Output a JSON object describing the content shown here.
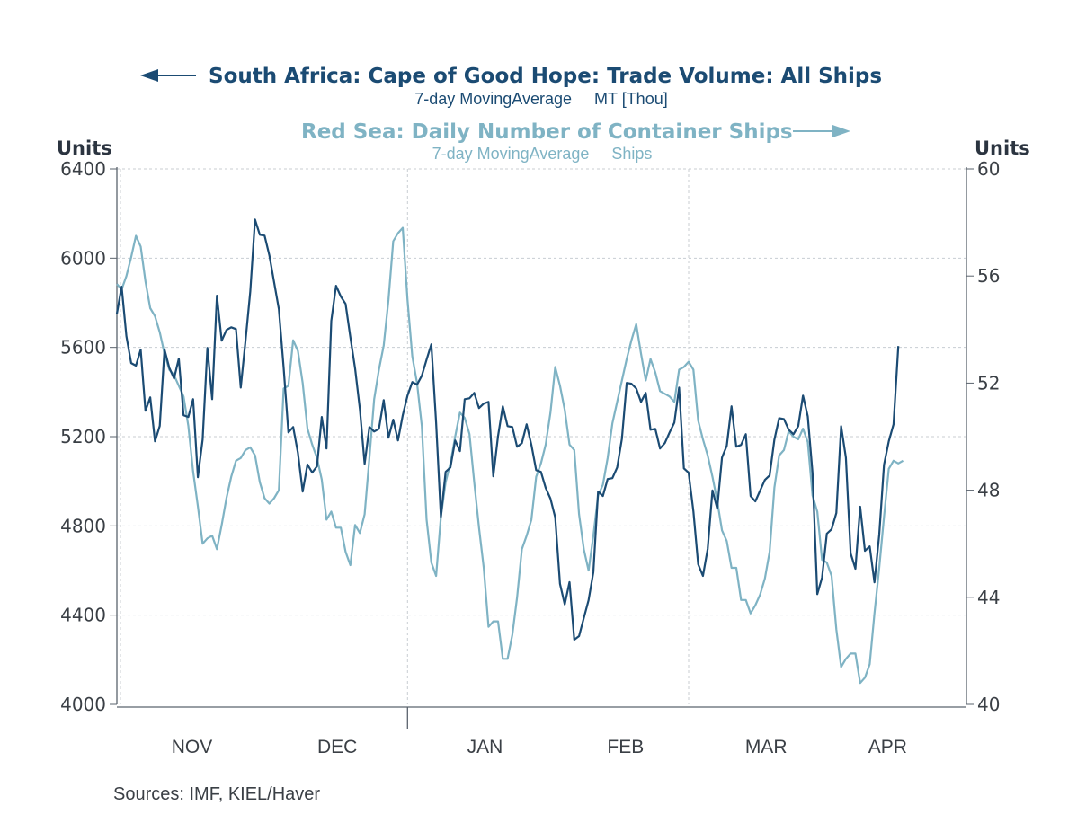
{
  "chart_data": {
    "type": "line",
    "title_left": "South Africa: Cape of Good Hope: Trade Volume: All Ships",
    "subtitle_left": "7-day MovingAverage     MT [Thou]",
    "title_right": "Red Sea: Daily Number of Container Ships",
    "subtitle_right": "7-day MovingAverage     Ships",
    "ylabel_left": "Units",
    "ylabel_right": "Units",
    "ylim_left": [
      4000,
      6400
    ],
    "ylim_right": [
      40,
      60
    ],
    "yticks_left": [
      "6400",
      "6000",
      "5600",
      "5200",
      "4800",
      "4400",
      "4000"
    ],
    "yticks_right": [
      "60",
      "56",
      "52",
      "48",
      "44",
      "40"
    ],
    "x_categories": [
      "NOV",
      "DEC",
      "JAN",
      "FEB",
      "MAR",
      "APR"
    ],
    "x_range_days": [
      0,
      182
    ],
    "month_start_days": [
      0,
      30,
      61,
      92,
      120,
      151
    ],
    "grid": true,
    "source": "Sources:  IMF, KIEL/Haver",
    "colors": {
      "left_series": "#1b4b73",
      "right_series": "#7fb3c4",
      "axis": "#5a636d",
      "grid": "#c8cdd2",
      "text": "#3a3f45"
    },
    "series": [
      {
        "name": "South Africa: Cape of Good Hope: Trade Volume: All Ships",
        "axis": "left",
        "start_day": 0,
        "values": [
          5751,
          5872,
          5650,
          5530,
          5518,
          5590,
          5316,
          5376,
          5179,
          5248,
          5590,
          5509,
          5461,
          5550,
          5296,
          5288,
          5368,
          5018,
          5187,
          5598,
          5368,
          5832,
          5630,
          5678,
          5690,
          5682,
          5420,
          5630,
          5851,
          6173,
          6105,
          6101,
          6013,
          5892,
          5771,
          5509,
          5219,
          5243,
          5127,
          4954,
          5075,
          5039,
          5067,
          5288,
          5147,
          5719,
          5876,
          5828,
          5795,
          5646,
          5505,
          5324,
          5078,
          5243,
          5223,
          5235,
          5364,
          5195,
          5276,
          5183,
          5296,
          5384,
          5445,
          5433,
          5473,
          5545,
          5614,
          5263,
          4841,
          5042,
          5062,
          5183,
          5135,
          5368,
          5372,
          5396,
          5328,
          5348,
          5356,
          5022,
          5203,
          5336,
          5247,
          5243,
          5155,
          5171,
          5255,
          5163,
          5050,
          5042,
          4970,
          4922,
          4838,
          4540,
          4448,
          4548,
          4290,
          4306,
          4387,
          4467,
          4592,
          4954,
          4934,
          5010,
          5014,
          5062,
          5191,
          5441,
          5437,
          5416,
          5356,
          5396,
          5231,
          5235,
          5147,
          5171,
          5219,
          5263,
          5420,
          5058,
          5038,
          4865,
          4628,
          4576,
          4697,
          4959,
          4878,
          5106,
          5159,
          5336,
          5155,
          5163,
          5211,
          4934,
          4910,
          4958,
          5006,
          5026,
          5187,
          5283,
          5279,
          5231,
          5211,
          5247,
          5384,
          5291,
          5038,
          4494,
          4568,
          4765,
          4785,
          4858,
          5247,
          5106,
          4677,
          4608,
          4886,
          4688,
          4708,
          4547,
          4761,
          5074,
          5179,
          5255,
          5606
        ]
      },
      {
        "name": "Red Sea: Daily Number of Container Ships",
        "axis": "right",
        "start_day": 0,
        "values": [
          55.7,
          55.5,
          56.0,
          56.7,
          57.5,
          57.1,
          55.8,
          54.8,
          54.5,
          53.9,
          53.1,
          52.5,
          52.3,
          51.9,
          51.5,
          50.4,
          48.7,
          47.4,
          46.0,
          46.2,
          46.3,
          45.8,
          46.7,
          47.7,
          48.5,
          49.1,
          49.2,
          49.5,
          49.6,
          49.3,
          48.3,
          47.7,
          47.5,
          47.7,
          48.0,
          51.8,
          51.9,
          53.6,
          53.2,
          52.0,
          50.3,
          49.7,
          49.2,
          48.4,
          46.9,
          47.2,
          46.6,
          46.6,
          45.7,
          45.2,
          46.7,
          46.4,
          47.1,
          49.2,
          51.4,
          52.5,
          53.4,
          55.1,
          57.3,
          57.6,
          57.8,
          55.1,
          53.0,
          52.0,
          50.4,
          46.9,
          45.3,
          44.8,
          47.0,
          48.3,
          49.0,
          50.0,
          50.9,
          50.7,
          50.1,
          48.3,
          46.6,
          45.1,
          42.9,
          43.1,
          43.1,
          41.7,
          41.7,
          42.6,
          44.0,
          45.8,
          46.3,
          46.9,
          48.5,
          49.0,
          49.7,
          50.9,
          52.6,
          51.9,
          51.0,
          49.7,
          49.5,
          47.1,
          45.8,
          45.0,
          46.3,
          47.8,
          48.2,
          49.2,
          50.5,
          51.3,
          52.1,
          52.9,
          53.6,
          54.2,
          53.1,
          52.1,
          52.9,
          52.4,
          51.7,
          51.6,
          51.5,
          51.3,
          52.5,
          52.6,
          52.8,
          52.5,
          50.6,
          49.9,
          49.3,
          48.5,
          47.6,
          46.5,
          46.1,
          45.1,
          45.1,
          43.9,
          43.9,
          43.4,
          43.7,
          44.1,
          44.7,
          45.7,
          48.1,
          49.3,
          49.5,
          50.2,
          50.0,
          49.9,
          50.3,
          49.8,
          47.8,
          47.2,
          45.4,
          45.3,
          44.8,
          42.8,
          41.4,
          41.7,
          41.9,
          41.9,
          40.8,
          41.0,
          41.5,
          43.4,
          45.1,
          47.0,
          48.8,
          49.1,
          49.0,
          49.1
        ]
      }
    ]
  }
}
